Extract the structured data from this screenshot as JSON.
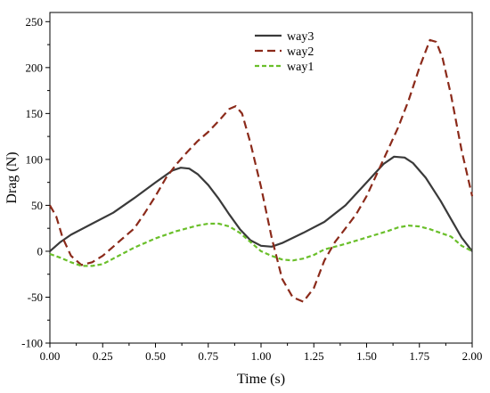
{
  "chart_data": {
    "type": "line",
    "title": "",
    "xlabel": "Time (s)",
    "ylabel": "Drag (N)",
    "xlim": [
      0,
      2.0
    ],
    "ylim": [
      -100,
      260
    ],
    "x_ticks": [
      "0.00",
      "0.25",
      "0.50",
      "0.75",
      "1.00",
      "1.25",
      "1.50",
      "1.75",
      "2.00"
    ],
    "y_ticks": [
      "-100",
      "-50",
      "0",
      "50",
      "100",
      "150",
      "200",
      "250"
    ],
    "legend_position": "top-center",
    "grid": false,
    "series": [
      {
        "name": "way3",
        "color": "#3a3a3a",
        "dash": "solid",
        "points": [
          [
            0.0,
            0
          ],
          [
            0.05,
            10
          ],
          [
            0.1,
            18
          ],
          [
            0.2,
            30
          ],
          [
            0.3,
            42
          ],
          [
            0.4,
            58
          ],
          [
            0.5,
            75
          ],
          [
            0.58,
            88
          ],
          [
            0.62,
            91
          ],
          [
            0.66,
            90
          ],
          [
            0.7,
            84
          ],
          [
            0.75,
            72
          ],
          [
            0.8,
            57
          ],
          [
            0.85,
            40
          ],
          [
            0.9,
            24
          ],
          [
            0.95,
            12
          ],
          [
            1.0,
            6
          ],
          [
            1.05,
            5
          ],
          [
            1.1,
            9
          ],
          [
            1.2,
            20
          ],
          [
            1.3,
            32
          ],
          [
            1.4,
            50
          ],
          [
            1.5,
            75
          ],
          [
            1.58,
            95
          ],
          [
            1.63,
            103
          ],
          [
            1.68,
            102
          ],
          [
            1.72,
            96
          ],
          [
            1.78,
            80
          ],
          [
            1.85,
            55
          ],
          [
            1.9,
            35
          ],
          [
            1.95,
            15
          ],
          [
            2.0,
            0
          ]
        ]
      },
      {
        "name": "way2",
        "color": "#8b2a1a",
        "dash": "dashed",
        "points": [
          [
            0.0,
            50
          ],
          [
            0.03,
            38
          ],
          [
            0.06,
            15
          ],
          [
            0.1,
            -5
          ],
          [
            0.15,
            -15
          ],
          [
            0.2,
            -12
          ],
          [
            0.25,
            -5
          ],
          [
            0.3,
            5
          ],
          [
            0.35,
            15
          ],
          [
            0.4,
            25
          ],
          [
            0.45,
            42
          ],
          [
            0.5,
            60
          ],
          [
            0.55,
            80
          ],
          [
            0.6,
            95
          ],
          [
            0.65,
            108
          ],
          [
            0.7,
            120
          ],
          [
            0.75,
            130
          ],
          [
            0.8,
            142
          ],
          [
            0.85,
            155
          ],
          [
            0.88,
            158
          ],
          [
            0.91,
            150
          ],
          [
            0.95,
            118
          ],
          [
            1.0,
            70
          ],
          [
            1.05,
            15
          ],
          [
            1.1,
            -30
          ],
          [
            1.15,
            -50
          ],
          [
            1.2,
            -55
          ],
          [
            1.25,
            -40
          ],
          [
            1.3,
            -10
          ],
          [
            1.35,
            10
          ],
          [
            1.4,
            25
          ],
          [
            1.45,
            40
          ],
          [
            1.5,
            60
          ],
          [
            1.55,
            85
          ],
          [
            1.6,
            110
          ],
          [
            1.65,
            135
          ],
          [
            1.7,
            165
          ],
          [
            1.75,
            200
          ],
          [
            1.8,
            230
          ],
          [
            1.83,
            228
          ],
          [
            1.86,
            210
          ],
          [
            1.9,
            170
          ],
          [
            1.95,
            110
          ],
          [
            2.0,
            60
          ]
        ]
      },
      {
        "name": "way1",
        "color": "#6abf2a",
        "dash": "dotted",
        "points": [
          [
            0.0,
            -3
          ],
          [
            0.05,
            -7
          ],
          [
            0.1,
            -12
          ],
          [
            0.15,
            -16
          ],
          [
            0.2,
            -16
          ],
          [
            0.25,
            -14
          ],
          [
            0.3,
            -8
          ],
          [
            0.35,
            -2
          ],
          [
            0.4,
            4
          ],
          [
            0.5,
            14
          ],
          [
            0.6,
            22
          ],
          [
            0.7,
            28
          ],
          [
            0.75,
            30
          ],
          [
            0.8,
            30
          ],
          [
            0.85,
            27
          ],
          [
            0.9,
            20
          ],
          [
            0.95,
            10
          ],
          [
            1.0,
            0
          ],
          [
            1.05,
            -5
          ],
          [
            1.1,
            -9
          ],
          [
            1.15,
            -10
          ],
          [
            1.2,
            -8
          ],
          [
            1.25,
            -4
          ],
          [
            1.3,
            2
          ],
          [
            1.4,
            8
          ],
          [
            1.5,
            15
          ],
          [
            1.6,
            22
          ],
          [
            1.65,
            26
          ],
          [
            1.7,
            28
          ],
          [
            1.75,
            27
          ],
          [
            1.8,
            24
          ],
          [
            1.9,
            16
          ],
          [
            1.95,
            6
          ],
          [
            2.0,
            0
          ]
        ]
      }
    ]
  }
}
